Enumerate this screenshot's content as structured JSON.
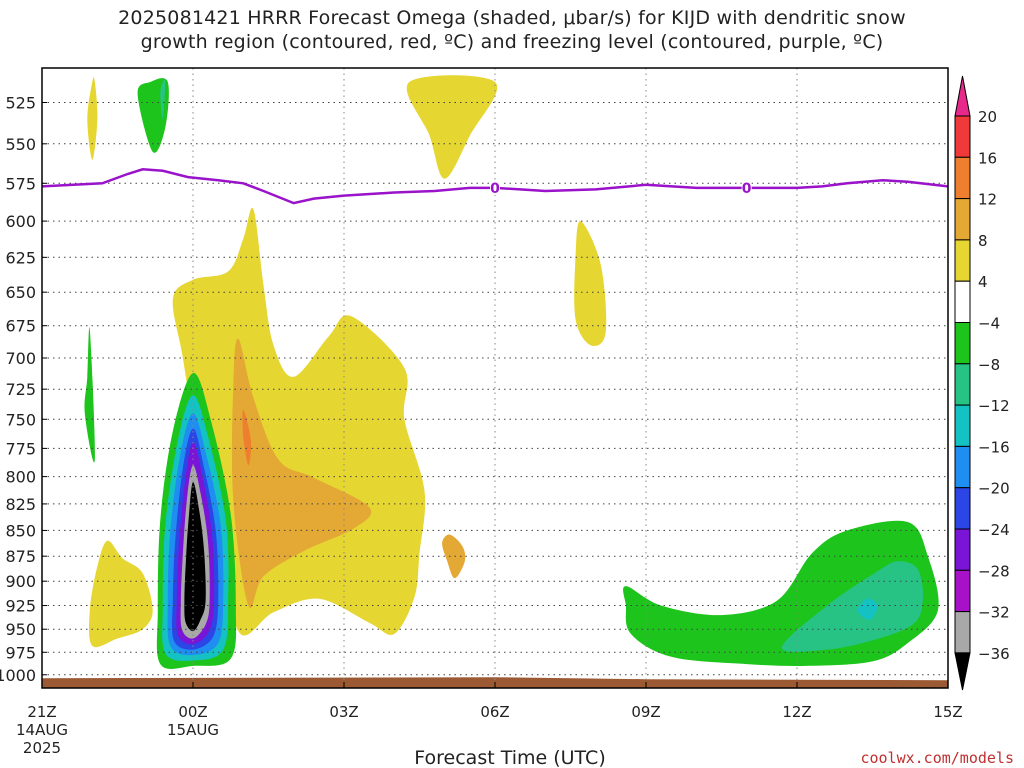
{
  "title": {
    "line1": "2025081421 HRRR Forecast Omega (shaded, μbar/s) for KIJD with dendritic snow",
    "line2": "growth region (contoured, red, ºC) and freezing level (contoured, purple, ºC)"
  },
  "credit": "coolwx.com/models",
  "chart_data": {
    "type": "filled-contour",
    "xlabel": "Forecast Time (UTC)",
    "x_ticks": [
      {
        "label": "21Z",
        "sub1": "14AUG",
        "sub2": "2025",
        "hour": 0
      },
      {
        "label": "00Z",
        "sub1": "15AUG",
        "sub2": "",
        "hour": 3
      },
      {
        "label": "03Z",
        "sub1": "",
        "sub2": "",
        "hour": 6
      },
      {
        "label": "06Z",
        "sub1": "",
        "sub2": "",
        "hour": 9
      },
      {
        "label": "09Z",
        "sub1": "",
        "sub2": "",
        "hour": 12
      },
      {
        "label": "12Z",
        "sub1": "",
        "sub2": "",
        "hour": 15
      },
      {
        "label": "15Z",
        "sub1": "",
        "sub2": "",
        "hour": 18
      }
    ],
    "xlim_hours": [
      0,
      18
    ],
    "y_axis": "pressure (mb), log scale, inverted",
    "y_ticks": [
      525,
      550,
      575,
      600,
      625,
      650,
      675,
      700,
      725,
      750,
      775,
      800,
      825,
      850,
      875,
      900,
      925,
      950,
      975,
      1000
    ],
    "ylim": [
      1015,
      505
    ],
    "grid": true,
    "colorbar": {
      "levels": [
        20,
        16,
        12,
        8,
        4,
        -4,
        -8,
        -12,
        -16,
        -20,
        -24,
        -28,
        -32,
        -36
      ],
      "colors": [
        "#e8288a",
        "#f03a3a",
        "#ee7f2e",
        "#e4a834",
        "#e6d632",
        "#ffffff",
        "#1dc41b",
        "#26c384",
        "#14c2c4",
        "#1e8ef0",
        "#2b45e6",
        "#7a14d6",
        "#a712c9",
        "#a8a8a8",
        "#000000"
      ]
    },
    "omega_regions": [
      {
        "level": 4,
        "color": "#e6d632",
        "points": [
          [
            1.0,
            513
          ],
          [
            1.05,
            513
          ],
          [
            1.1,
            535
          ],
          [
            1.0,
            560
          ],
          [
            0.9,
            535
          ]
        ]
      },
      {
        "level": 4,
        "color": "#e6d632",
        "points": [
          [
            3.0,
            641
          ],
          [
            3.7,
            635
          ],
          [
            4.0,
            612
          ],
          [
            4.2,
            592
          ],
          [
            4.4,
            645
          ],
          [
            4.6,
            690
          ],
          [
            5.0,
            715
          ],
          [
            5.7,
            683
          ],
          [
            6.15,
            668
          ],
          [
            7.2,
            708
          ],
          [
            7.2,
            750
          ],
          [
            7.6,
            813
          ],
          [
            7.5,
            872
          ],
          [
            7.4,
            916
          ],
          [
            7.0,
            955
          ],
          [
            6.5,
            943
          ],
          [
            5.5,
            918
          ],
          [
            4.6,
            932
          ],
          [
            3.9,
            952
          ],
          [
            3.5,
            840
          ],
          [
            3.1,
            815
          ],
          [
            3.0,
            758
          ],
          [
            2.8,
            700
          ],
          [
            2.6,
            655
          ]
        ]
      },
      {
        "level": 4,
        "color": "#e6d632",
        "points": [
          [
            1.3,
            860
          ],
          [
            1.6,
            877
          ],
          [
            2.0,
            892
          ],
          [
            2.2,
            930
          ],
          [
            2.0,
            950
          ],
          [
            1.5,
            960
          ],
          [
            1.0,
            968
          ],
          [
            0.95,
            930
          ],
          [
            1.1,
            885
          ]
        ]
      },
      {
        "level": 4,
        "color": "#e6d632",
        "points": [
          [
            7.3,
            513
          ],
          [
            9.0,
            513
          ],
          [
            8.5,
            545
          ],
          [
            8.0,
            572
          ],
          [
            7.7,
            545
          ]
        ]
      },
      {
        "level": 4,
        "color": "#e6d632",
        "points": [
          [
            10.7,
            600
          ],
          [
            11.1,
            630
          ],
          [
            11.2,
            680
          ],
          [
            10.9,
            690
          ],
          [
            10.6,
            670
          ],
          [
            10.6,
            625
          ]
        ]
      },
      {
        "level": 8,
        "color": "#e4a834",
        "points": [
          [
            3.9,
            685
          ],
          [
            4.2,
            732
          ],
          [
            4.7,
            785
          ],
          [
            5.4,
            801
          ],
          [
            6.5,
            828
          ],
          [
            6.2,
            848
          ],
          [
            5.2,
            870
          ],
          [
            4.4,
            895
          ],
          [
            4.1,
            925
          ],
          [
            3.8,
            822
          ],
          [
            3.8,
            722
          ]
        ]
      },
      {
        "level": 8,
        "color": "#e4a834",
        "points": [
          [
            8.1,
            854
          ],
          [
            8.35,
            865
          ],
          [
            8.4,
            880
          ],
          [
            8.2,
            897
          ],
          [
            8.05,
            880
          ],
          [
            7.95,
            862
          ]
        ]
      },
      {
        "level": 12,
        "color": "#ee7f2e",
        "points": [
          [
            4.0,
            742
          ],
          [
            4.15,
            768
          ],
          [
            4.1,
            790
          ],
          [
            4.0,
            765
          ]
        ]
      },
      {
        "level": -4,
        "color": "#1dc41b",
        "points": [
          [
            2.15,
            513
          ],
          [
            2.5,
            513
          ],
          [
            2.45,
            540
          ],
          [
            2.2,
            555
          ],
          [
            1.9,
            520
          ]
        ]
      },
      {
        "level": -4,
        "color": "#1dc41b",
        "points": [
          [
            0.95,
            678
          ],
          [
            1.05,
            785
          ],
          [
            0.85,
            745
          ],
          [
            0.9,
            715
          ]
        ]
      },
      {
        "level": -4,
        "color": "#1dc41b",
        "points": [
          [
            3.0,
            712
          ],
          [
            3.35,
            750
          ],
          [
            3.75,
            835
          ],
          [
            3.85,
            925
          ],
          [
            3.75,
            982
          ],
          [
            3.0,
            990
          ],
          [
            2.35,
            988
          ],
          [
            2.3,
            930
          ],
          [
            2.35,
            840
          ],
          [
            2.6,
            760
          ]
        ]
      },
      {
        "level": -4,
        "color": "#1dc41b",
        "points": [
          [
            11.6,
            905
          ],
          [
            12.3,
            925
          ],
          [
            13.5,
            935
          ],
          [
            14.6,
            920
          ],
          [
            15.3,
            872
          ],
          [
            16.0,
            850
          ],
          [
            17.2,
            842
          ],
          [
            17.6,
            875
          ],
          [
            17.8,
            930
          ],
          [
            17.2,
            965
          ],
          [
            16.5,
            985
          ],
          [
            15.2,
            990
          ],
          [
            14.0,
            988
          ],
          [
            12.5,
            980
          ],
          [
            11.7,
            955
          ],
          [
            11.6,
            925
          ]
        ]
      },
      {
        "level": -8,
        "color": "#26c384",
        "points": [
          [
            2.4,
            513
          ],
          [
            2.45,
            513
          ],
          [
            2.4,
            535
          ],
          [
            2.35,
            520
          ]
        ]
      },
      {
        "level": -8,
        "color": "#26c384",
        "points": [
          [
            14.7,
            970
          ],
          [
            15.6,
            925
          ],
          [
            16.6,
            890
          ],
          [
            17.0,
            880
          ],
          [
            17.4,
            888
          ],
          [
            17.5,
            920
          ],
          [
            17.3,
            945
          ],
          [
            16.5,
            962
          ],
          [
            15.6,
            972
          ]
        ]
      },
      {
        "level": -12,
        "color": "#14c2c4",
        "points": [
          [
            16.2,
            930
          ],
          [
            16.4,
            918
          ],
          [
            16.6,
            925
          ],
          [
            16.45,
            940
          ]
        ]
      },
      {
        "level": -16,
        "color": "#14c2c4",
        "points": [
          [
            3.0,
            730
          ],
          [
            3.3,
            765
          ],
          [
            3.65,
            840
          ],
          [
            3.7,
            915
          ],
          [
            3.6,
            972
          ],
          [
            3.0,
            984
          ],
          [
            2.45,
            976
          ],
          [
            2.4,
            925
          ],
          [
            2.45,
            845
          ],
          [
            2.7,
            768
          ]
        ]
      },
      {
        "level": -20,
        "color": "#1e8ef0",
        "points": [
          [
            3.0,
            745
          ],
          [
            3.25,
            778
          ],
          [
            3.55,
            845
          ],
          [
            3.6,
            918
          ],
          [
            3.5,
            965
          ],
          [
            3.0,
            978
          ],
          [
            2.55,
            968
          ],
          [
            2.5,
            920
          ],
          [
            2.55,
            850
          ],
          [
            2.75,
            780
          ]
        ]
      },
      {
        "level": -24,
        "color": "#2b45e6",
        "points": [
          [
            3.0,
            758
          ],
          [
            3.2,
            788
          ],
          [
            3.45,
            850
          ],
          [
            3.5,
            920
          ],
          [
            3.4,
            958
          ],
          [
            3.0,
            972
          ],
          [
            2.62,
            962
          ],
          [
            2.6,
            918
          ],
          [
            2.65,
            858
          ],
          [
            2.8,
            792
          ]
        ]
      },
      {
        "level": -28,
        "color": "#7a14d6",
        "points": [
          [
            3.0,
            770
          ],
          [
            3.18,
            798
          ],
          [
            3.38,
            855
          ],
          [
            3.42,
            920
          ],
          [
            3.32,
            952
          ],
          [
            3.0,
            966
          ],
          [
            2.7,
            956
          ],
          [
            2.68,
            918
          ],
          [
            2.72,
            865
          ],
          [
            2.85,
            802
          ]
        ]
      },
      {
        "level": -32,
        "color": "#a8a8a8",
        "points": [
          [
            3.0,
            790
          ],
          [
            3.15,
            815
          ],
          [
            3.3,
            862
          ],
          [
            3.33,
            920
          ],
          [
            3.25,
            945
          ],
          [
            3.0,
            960
          ],
          [
            2.78,
            950
          ],
          [
            2.76,
            918
          ],
          [
            2.8,
            872
          ],
          [
            2.88,
            820
          ]
        ]
      },
      {
        "level": -36,
        "color": "#000000",
        "points": [
          [
            3.0,
            805
          ],
          [
            3.12,
            830
          ],
          [
            3.22,
            870
          ],
          [
            3.25,
            920
          ],
          [
            3.15,
            940
          ],
          [
            3.0,
            952
          ],
          [
            2.85,
            942
          ],
          [
            2.83,
            918
          ],
          [
            2.86,
            878
          ],
          [
            2.92,
            835
          ]
        ]
      }
    ],
    "freezing_level": {
      "label": "0",
      "color": "#9a12c9",
      "points": [
        [
          0,
          577
        ],
        [
          1.2,
          575
        ],
        [
          1.7,
          569
        ],
        [
          2.0,
          566
        ],
        [
          2.4,
          567
        ],
        [
          2.9,
          571
        ],
        [
          3.5,
          573
        ],
        [
          4.0,
          575
        ],
        [
          4.4,
          580
        ],
        [
          5.0,
          588
        ],
        [
          5.4,
          585
        ],
        [
          6.0,
          583
        ],
        [
          7.0,
          581
        ],
        [
          7.8,
          580
        ],
        [
          8.5,
          578
        ],
        [
          9.0,
          578
        ],
        [
          9.5,
          579
        ],
        [
          10.0,
          580
        ],
        [
          11.0,
          579
        ],
        [
          12.0,
          576
        ],
        [
          13.0,
          578
        ],
        [
          14.0,
          578
        ],
        [
          15.0,
          578
        ],
        [
          15.5,
          577
        ],
        [
          16.0,
          575
        ],
        [
          16.7,
          573
        ],
        [
          17.2,
          574
        ],
        [
          18.0,
          577
        ]
      ],
      "label_hours": [
        9.0,
        14.0
      ]
    },
    "terrain_mb": 1005
  }
}
